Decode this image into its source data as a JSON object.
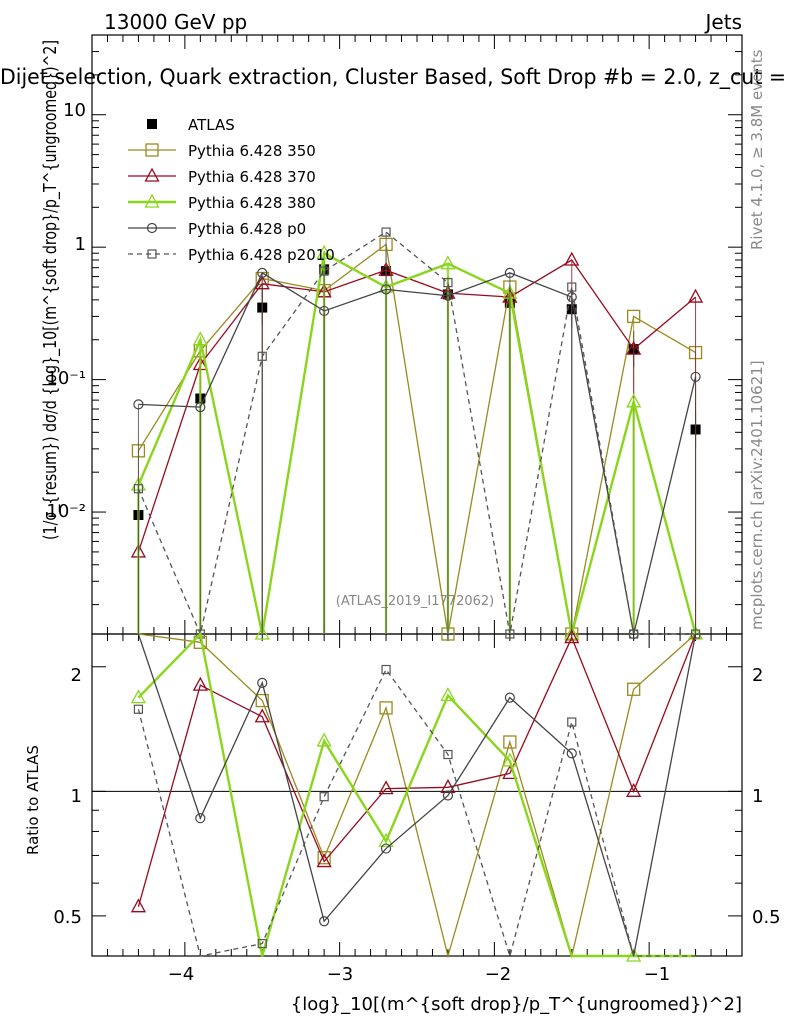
{
  "header": {
    "left": "13000 GeV pp",
    "right": "Jets",
    "title": "Dijet selection, Quark extraction, Cluster Based, Soft Drop #b = 2.0, z_cut ="
  },
  "side_labels": {
    "rivet": "Rivet 4.1.0, ≥ 3.8M events",
    "mcplots": "mcplots.cern.ch [arXiv:2401.10621]"
  },
  "watermark": "(ATLAS_2019_I1772062)",
  "axes": {
    "ylabel_main": "(1/σ_{resum}) dσ/d {log}_10[(m^{soft drop}/p_T^{ungroomed})^2]",
    "ylabel_ratio": "Ratio to ATLAS",
    "xlabel": "{log}_10[(m^{soft drop}/p_T^{ungroomed})^2]",
    "xticks": [
      "−4",
      "−3",
      "−2",
      "−1"
    ],
    "yticks_main": [
      "10⁻²",
      "10⁻¹",
      "1",
      "10"
    ],
    "yticks_ratio": [
      "0.5",
      "1",
      "2"
    ]
  },
  "chart_data": {
    "type": "scatter",
    "xlim": [
      -4.6,
      -0.4
    ],
    "ylim": [
      0.0012,
      40
    ],
    "ratio_ylim": [
      0.4,
      2.4
    ],
    "x": [
      -4.3,
      -3.9,
      -3.5,
      -3.1,
      -2.7,
      -2.3,
      -1.9,
      -1.5,
      -1.1,
      -0.7
    ],
    "series": [
      {
        "name": "ATLAS",
        "color": "#000000",
        "marker": "square-filled",
        "line": "none",
        "values": [
          0.0095,
          0.072,
          0.35,
          0.68,
          0.66,
          0.44,
          0.38,
          0.34,
          0.17,
          0.042
        ]
      },
      {
        "name": "Pythia 6.428 350",
        "color": "#9a8a1e",
        "marker": "square-open",
        "line": "solid",
        "values": [
          0.029,
          0.165,
          0.58,
          0.47,
          1.05,
          0.001,
          0.5,
          0.001,
          0.3,
          0.16
        ]
      },
      {
        "name": "Pythia 6.428 370",
        "color": "#990a1e",
        "marker": "triangle-open",
        "line": "solid",
        "values": [
          0.005,
          0.13,
          0.53,
          0.46,
          0.67,
          0.45,
          0.42,
          0.8,
          0.17,
          0.42
        ]
      },
      {
        "name": "Pythia 6.428 380",
        "color": "#8ad61c",
        "marker": "triangle-open",
        "line": "solid",
        "values": [
          0.016,
          0.2,
          0.001,
          0.9,
          0.5,
          0.75,
          0.45,
          0.001,
          0.068,
          0.001
        ]
      },
      {
        "name": "Pythia 6.428 p0",
        "color": "#444444",
        "marker": "circle-open",
        "line": "solid",
        "values": [
          0.065,
          0.062,
          0.64,
          0.33,
          0.48,
          0.43,
          0.64,
          0.42,
          0.001,
          0.105
        ]
      },
      {
        "name": "Pythia 6.428 p2010",
        "color": "#555555",
        "marker": "square-open-small",
        "line": "dashed",
        "values": [
          0.015,
          0.001,
          0.15,
          0.66,
          1.3,
          0.54,
          0.001,
          0.5,
          0.001,
          0.001
        ]
      }
    ]
  }
}
